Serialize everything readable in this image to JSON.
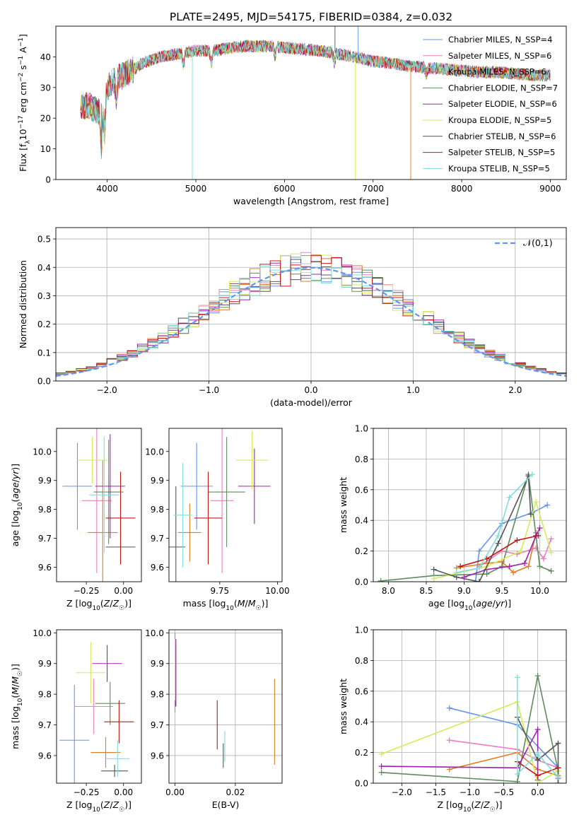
{
  "title": "PLATE=2495, MJD=54175, FIBERID=0384, z=0.032",
  "colors": [
    "#6495ed",
    "#e87fbf",
    "#e07b27",
    "#5e8c5e",
    "#a020b0",
    "#d6ea5a",
    "#555555",
    "#c01818",
    "#7fdede"
  ],
  "chart_data": [
    {
      "type": "line",
      "id": "spectrum",
      "xlabel": "wavelength [Angstrom, rest frame]",
      "ylabel": "Flux [f_λ 10^-17 erg cm^-2 s^-1 A^-1]",
      "xlim": [
        3420,
        9180
      ],
      "ylim": [
        0,
        50
      ],
      "xticks": [
        4000,
        5000,
        6000,
        7000,
        8000,
        9000
      ],
      "yticks": [
        0,
        10,
        20,
        30,
        40
      ],
      "legend_position": "top-right",
      "legend": [
        "Chabrier MILES, N_SSP=4",
        "Salpeter MILES, N_SSP=6",
        "Kroupa MILES, N_SSP=6",
        "Chabrier ELODIE, N_SSP=7",
        "Salpeter ELODIE, N_SSP=6",
        "Kroupa ELODIE, N_SSP=5",
        "Chabrier STELIB, N_SSP=6",
        "Salpeter STELIB, N_SSP=5",
        "Kroupa STELIB, N_SSP=5"
      ],
      "continuum": [
        [
          3700,
          24
        ],
        [
          3800,
          24
        ],
        [
          3900,
          22
        ],
        [
          4000,
          30
        ],
        [
          4100,
          33
        ],
        [
          4200,
          34
        ],
        [
          4400,
          38
        ],
        [
          4600,
          40
        ],
        [
          4800,
          41
        ],
        [
          5000,
          42
        ],
        [
          5200,
          42
        ],
        [
          5400,
          43
        ],
        [
          5600,
          43.5
        ],
        [
          5800,
          43.5
        ],
        [
          6000,
          43
        ],
        [
          6200,
          42.5
        ],
        [
          6400,
          42
        ],
        [
          6600,
          41
        ],
        [
          6800,
          40
        ],
        [
          7000,
          38.5
        ],
        [
          7200,
          38
        ],
        [
          7400,
          37
        ],
        [
          7600,
          36.5
        ],
        [
          7800,
          36
        ],
        [
          8000,
          35.5
        ],
        [
          8200,
          35
        ],
        [
          8400,
          35
        ],
        [
          8600,
          34.5
        ],
        [
          8800,
          34
        ],
        [
          9000,
          34
        ]
      ]
    },
    {
      "type": "bar",
      "id": "residuals",
      "xlabel": "(data-model)/error",
      "ylabel": "Normed distribution",
      "xlim": [
        -2.5,
        2.5
      ],
      "ylim": [
        0,
        0.54
      ],
      "xticks": [
        -2,
        -1,
        0,
        1,
        2
      ],
      "yticks": [
        0.0,
        0.1,
        0.2,
        0.3,
        0.4,
        0.5
      ],
      "legend": [
        "𝒩(0,1)"
      ],
      "legend_position": "top-right",
      "bin_width": 0.1
    },
    {
      "type": "scatter",
      "id": "age-vs-z",
      "xlabel": "Z [log10(Z/Z☉)]",
      "ylabel": "age  [log10(age/yr)]",
      "xlim": [
        -0.45,
        0.12
      ],
      "ylim": [
        9.55,
        10.08
      ],
      "xticks": [
        -0.25,
        0.0
      ],
      "xticklabels": [
        "−0.25",
        "0.00"
      ],
      "yticks": [
        9.6,
        9.7,
        9.8,
        9.9,
        10.0
      ],
      "points": [
        {
          "x": -0.31,
          "xerr": 0.1,
          "y": 9.88,
          "yerr": 0.15
        },
        {
          "x": -0.18,
          "xerr": 0.1,
          "y": 9.83,
          "yerr": 0.25
        },
        {
          "x": -0.14,
          "xerr": 0.1,
          "y": 9.72,
          "yerr": 0.25
        },
        {
          "x": -0.1,
          "xerr": 0.1,
          "y": 9.86,
          "yerr": 0.18
        },
        {
          "x": -0.09,
          "xerr": 0.1,
          "y": 9.88,
          "yerr": 0.18
        },
        {
          "x": -0.21,
          "xerr": 0.1,
          "y": 9.97,
          "yerr": 0.08
        },
        {
          "x": -0.02,
          "xerr": 0.1,
          "y": 9.67,
          "yerr": 0.06
        },
        {
          "x": -0.02,
          "xerr": 0.1,
          "y": 9.77,
          "yerr": 0.16
        },
        {
          "x": -0.13,
          "xerr": 0.1,
          "y": 9.85,
          "yerr": 0.2
        }
      ]
    },
    {
      "type": "scatter",
      "id": "age-vs-mass",
      "xlabel": "mass [log10(M/M☉)]",
      "xlim": [
        9.53,
        10.02
      ],
      "ylim": [
        9.55,
        10.08
      ],
      "xticks": [
        9.75,
        10.0
      ],
      "xticklabels": [
        "9.75",
        "10.00"
      ],
      "yticks": [
        9.6,
        9.7,
        9.8,
        9.9,
        10.0
      ],
      "points": [
        {
          "x": 9.65,
          "xerr": 0.07,
          "y": 9.88,
          "yerr": 0.15
        },
        {
          "x": 9.76,
          "xerr": 0.05,
          "y": 9.83,
          "yerr": 0.25
        },
        {
          "x": 9.62,
          "xerr": 0.05,
          "y": 9.72,
          "yerr": 0.1
        },
        {
          "x": 9.78,
          "xerr": 0.08,
          "y": 9.86,
          "yerr": 0.19
        },
        {
          "x": 9.9,
          "xerr": 0.07,
          "y": 9.88,
          "yerr": 0.13
        },
        {
          "x": 9.89,
          "xerr": 0.07,
          "y": 9.97,
          "yerr": 0.1
        },
        {
          "x": 9.56,
          "xerr": 0.04,
          "y": 9.67,
          "yerr": 0.21
        },
        {
          "x": 9.7,
          "xerr": 0.06,
          "y": 9.77,
          "yerr": 0.16
        },
        {
          "x": 9.59,
          "xerr": 0.04,
          "y": 9.78,
          "yerr": 0.18
        }
      ]
    },
    {
      "type": "line",
      "id": "weight-vs-age",
      "xlabel": "age  [log10(age/yr)]",
      "ylabel": "mass weight",
      "xlim": [
        7.8,
        10.35
      ],
      "ylim": [
        0,
        1.0
      ],
      "xticks": [
        8.0,
        8.5,
        9.0,
        9.5,
        10.0
      ],
      "yticks": [
        0.0,
        0.2,
        0.4,
        0.6,
        0.8,
        1.0
      ],
      "series": [
        {
          "points": [
            [
              9.15,
              0.0
            ],
            [
              9.2,
              0.2
            ],
            [
              9.5,
              0.38
            ],
            [
              9.9,
              0.45
            ],
            [
              10.1,
              0.5
            ]
          ]
        },
        {
          "points": [
            [
              9.2,
              0.1
            ],
            [
              9.5,
              0.2
            ],
            [
              9.7,
              0.18
            ],
            [
              9.95,
              0.22
            ],
            [
              10.05,
              0.15
            ],
            [
              10.15,
              0.28
            ]
          ]
        },
        {
          "points": [
            [
              8.9,
              0.09
            ],
            [
              9.3,
              0.12
            ],
            [
              9.5,
              0.13
            ],
            [
              9.65,
              0.06
            ],
            [
              9.85,
              0.1
            ],
            [
              9.95,
              0.32
            ]
          ]
        },
        {
          "points": [
            [
              7.9,
              0.005
            ],
            [
              8.6,
              0.04
            ],
            [
              9.3,
              0.05
            ],
            [
              9.5,
              0.1
            ],
            [
              9.85,
              0.7
            ],
            [
              10.0,
              0.1
            ],
            [
              10.15,
              0.07
            ]
          ]
        },
        {
          "points": [
            [
              9.0,
              0.03
            ],
            [
              9.3,
              0.08
            ],
            [
              9.6,
              0.1
            ],
            [
              9.8,
              0.12
            ],
            [
              9.95,
              0.3
            ],
            [
              10.0,
              0.35
            ]
          ]
        },
        {
          "points": [
            [
              8.6,
              0.02
            ],
            [
              9.3,
              0.1
            ],
            [
              9.75,
              0.2
            ],
            [
              9.95,
              0.52
            ],
            [
              10.15,
              0.19
            ]
          ]
        },
        {
          "points": [
            [
              8.6,
              0.08
            ],
            [
              8.9,
              0.03
            ],
            [
              9.2,
              0.0
            ],
            [
              9.45,
              0.25
            ],
            [
              9.85,
              0.69
            ],
            [
              9.88,
              0.44
            ]
          ]
        },
        {
          "points": [
            [
              8.95,
              0.1
            ],
            [
              9.3,
              0.15
            ],
            [
              9.7,
              0.27
            ],
            [
              9.98,
              0.3
            ]
          ]
        },
        {
          "points": [
            [
              8.9,
              0.06
            ],
            [
              9.2,
              0.09
            ],
            [
              9.45,
              0.3
            ],
            [
              9.6,
              0.55
            ],
            [
              9.9,
              0.7
            ]
          ]
        }
      ]
    },
    {
      "type": "scatter",
      "id": "mass-vs-z",
      "xlabel": "Z [log10(Z/Z☉)]",
      "ylabel": "mass [log10(M/M☉)]",
      "xlim": [
        -0.45,
        0.12
      ],
      "ylim": [
        9.51,
        10.01
      ],
      "xticks": [
        -0.25,
        0.0
      ],
      "xticklabels": [
        "−0.25",
        "0.00"
      ],
      "yticks": [
        9.6,
        9.7,
        9.8,
        9.9,
        10.0
      ],
      "points": [
        {
          "x": -0.33,
          "xerr": 0.1,
          "y": 9.65,
          "yerr": 0.18
        },
        {
          "x": -0.2,
          "xerr": 0.13,
          "y": 9.76,
          "yerr": 0.09
        },
        {
          "x": -0.12,
          "xerr": 0.1,
          "y": 9.61,
          "yerr": 0.05
        },
        {
          "x": -0.09,
          "xerr": 0.1,
          "y": 9.77,
          "yerr": 0.07
        },
        {
          "x": -0.11,
          "xerr": 0.1,
          "y": 9.9,
          "yerr": 0.06
        },
        {
          "x": -0.22,
          "xerr": 0.1,
          "y": 9.87,
          "yerr": 0.1
        },
        {
          "x": -0.06,
          "xerr": 0.09,
          "y": 9.55,
          "yerr": 0.02
        },
        {
          "x": -0.03,
          "xerr": 0.1,
          "y": 9.71,
          "yerr": 0.07
        },
        {
          "x": -0.04,
          "xerr": 0.08,
          "y": 9.59,
          "yerr": 0.06
        }
      ]
    },
    {
      "type": "scatter",
      "id": "mass-vs-ebv",
      "xlabel": "E(B-V)",
      "xlim": [
        -0.002,
        0.0355
      ],
      "ylim": [
        9.51,
        10.01
      ],
      "xticks": [
        0.0,
        0.02
      ],
      "xticklabels": [
        "0.00",
        "0.02"
      ],
      "yticks": [
        9.6,
        9.7,
        9.8,
        9.9,
        10.0
      ],
      "points": [
        {
          "x": 0.0,
          "y": 9.87,
          "yerr": 0.13
        },
        {
          "x": 0.0001,
          "y": 9.89,
          "yerr": 0.09
        },
        {
          "x": 0.033,
          "y": 9.71,
          "yerr": 0.14
        },
        {
          "x": 0.0002,
          "y": 9.86,
          "yerr": 0.1
        },
        {
          "x": 0.0003,
          "y": 9.87,
          "yerr": 0.11
        },
        {
          "x": 0.0,
          "y": 9.88,
          "yerr": 0.1
        },
        {
          "x": 0.016,
          "y": 9.6,
          "yerr": 0.04
        },
        {
          "x": 0.014,
          "y": 9.7,
          "yerr": 0.08
        },
        {
          "x": 0.0165,
          "y": 9.63,
          "yerr": 0.05
        }
      ]
    },
    {
      "type": "line",
      "id": "weight-vs-z",
      "xlabel": "Z [log10(Z/Z☉)]",
      "ylabel": "mass weight",
      "xlim": [
        -2.42,
        0.42
      ],
      "ylim": [
        0,
        1.0
      ],
      "xticks": [
        -2.0,
        -1.5,
        -1.0,
        -0.5,
        0.0
      ],
      "xticklabels": [
        "−2.0",
        "−1.5",
        "−1.0",
        "−0.5",
        "0.0"
      ],
      "yticks": [
        0.0,
        0.2,
        0.4,
        0.6,
        0.8,
        1.0
      ],
      "series": [
        {
          "points": [
            [
              -1.3,
              0.49
            ],
            [
              -0.3,
              0.38
            ],
            [
              0.3,
              0.1
            ],
            [
              0.3,
              0.03
            ]
          ]
        },
        {
          "points": [
            [
              -1.3,
              0.28
            ],
            [
              -0.3,
              0.22
            ],
            [
              0.0,
              0.15
            ],
            [
              0.3,
              0.1
            ]
          ]
        },
        {
          "points": [
            [
              -1.3,
              0.09
            ],
            [
              -0.3,
              0.2
            ],
            [
              0.0,
              0.09
            ],
            [
              0.3,
              0.05
            ]
          ]
        },
        {
          "points": [
            [
              -2.3,
              0.07
            ],
            [
              -0.3,
              0.01
            ],
            [
              0.0,
              0.7
            ],
            [
              0.3,
              0.08
            ]
          ]
        },
        {
          "points": [
            [
              -2.3,
              0.11
            ],
            [
              -0.3,
              0.1
            ],
            [
              0.0,
              0.35
            ],
            [
              0.0,
              0.02
            ]
          ]
        },
        {
          "points": [
            [
              -2.3,
              0.19
            ],
            [
              -0.3,
              0.53
            ],
            [
              0.0,
              0.0
            ],
            [
              0.3,
              0.08
            ]
          ]
        },
        {
          "points": [
            [
              -0.3,
              0.43
            ],
            [
              0.0,
              0.15
            ],
            [
              0.3,
              0.26
            ],
            [
              0.3,
              0.0
            ]
          ]
        },
        {
          "points": [
            [
              -0.3,
              0.14
            ],
            [
              0.0,
              0.05
            ],
            [
              0.3,
              0.1
            ]
          ]
        },
        {
          "points": [
            [
              -0.3,
              0.69
            ],
            [
              -0.3,
              0.06
            ],
            [
              0.0,
              0.19
            ],
            [
              0.3,
              0.04
            ]
          ]
        }
      ]
    }
  ]
}
